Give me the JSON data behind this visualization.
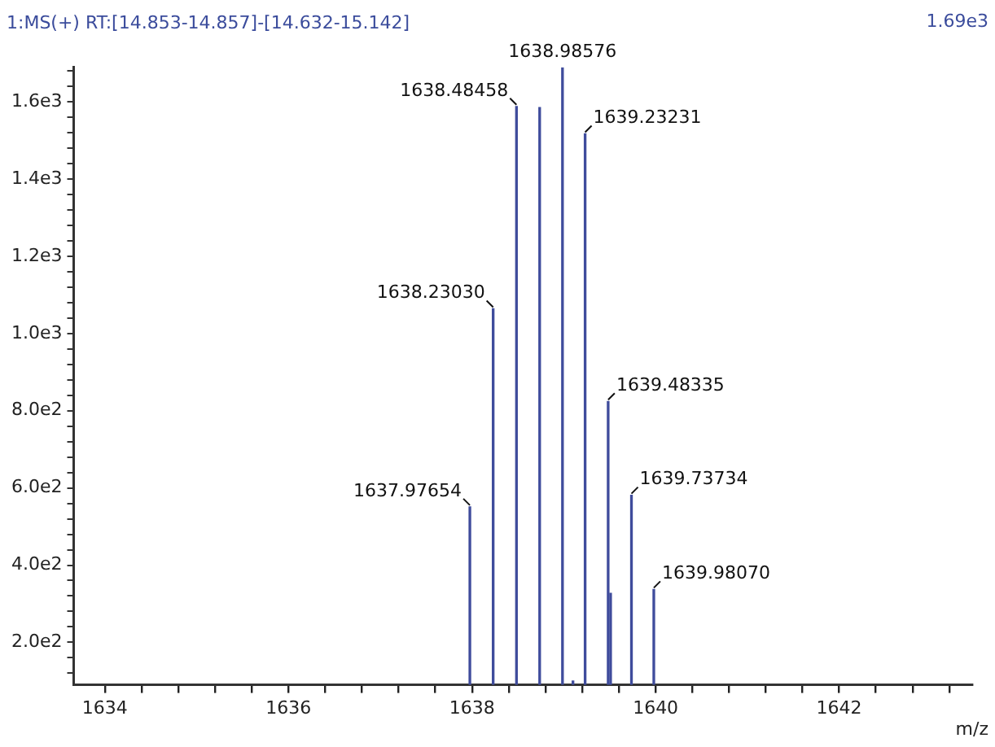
{
  "chart_data": {
    "type": "bar",
    "title": "1:MS(+) RT:[14.853-14.857]-[14.632-15.142]",
    "xlabel": "m/z",
    "x": [
      1637.97654,
      1638.2303,
      1638.48458,
      1638.737,
      1638.98576,
      1639.1,
      1639.23231,
      1639.48335,
      1639.51,
      1639.73734,
      1639.9807
    ],
    "series": [
      {
        "color": "#3f4c9c",
        "values": [
          551,
          1064,
          1588,
          1585,
          1688,
          100,
          1517,
          824,
          327,
          581,
          337
        ]
      }
    ],
    "xlim": [
      1633.66,
      1643.45
    ],
    "xticks": [
      1634,
      {
        "value": 1634.4,
        "label": null
      },
      {
        "value": 1634.8,
        "label": null
      },
      {
        "value": 1635.2,
        "label": null
      },
      {
        "value": 1635.6,
        "label": null
      },
      1636,
      {
        "value": 1636.4,
        "label": null
      },
      {
        "value": 1636.8,
        "label": null
      },
      {
        "value": 1637.2,
        "label": null
      },
      {
        "value": 1637.6,
        "label": null
      },
      1638,
      {
        "value": 1638.4,
        "label": null
      },
      {
        "value": 1638.8,
        "label": null
      },
      {
        "value": 1639.2,
        "label": null
      },
      {
        "value": 1639.6,
        "label": null
      },
      1640,
      {
        "value": 1640.4,
        "label": null
      },
      {
        "value": 1640.8,
        "label": null
      },
      {
        "value": 1641.2,
        "label": null
      },
      {
        "value": 1641.6,
        "label": null
      },
      1642,
      {
        "value": 1642.4,
        "label": null
      },
      {
        "value": 1642.8,
        "label": null
      },
      {
        "value": 1643.2,
        "label": null
      }
    ],
    "ylim": [
      90,
      1690
    ],
    "yticks": [
      {
        "value": 120,
        "label": null
      },
      {
        "value": 160,
        "label": null
      },
      {
        "value": 200,
        "label": "2.0e2"
      },
      {
        "value": 240,
        "label": null
      },
      {
        "value": 280,
        "label": null
      },
      {
        "value": 320,
        "label": null
      },
      {
        "value": 360,
        "label": null
      },
      {
        "value": 400,
        "label": "4.0e2"
      },
      {
        "value": 440,
        "label": null
      },
      {
        "value": 480,
        "label": null
      },
      {
        "value": 520,
        "label": null
      },
      {
        "value": 560,
        "label": null
      },
      {
        "value": 600,
        "label": "6.0e2"
      },
      {
        "value": 640,
        "label": null
      },
      {
        "value": 680,
        "label": null
      },
      {
        "value": 720,
        "label": null
      },
      {
        "value": 760,
        "label": null
      },
      {
        "value": 800,
        "label": "8.0e2"
      },
      {
        "value": 840,
        "label": null
      },
      {
        "value": 880,
        "label": null
      },
      {
        "value": 920,
        "label": null
      },
      {
        "value": 960,
        "label": null
      },
      {
        "value": 1000,
        "label": "1.0e3"
      },
      {
        "value": 1040,
        "label": null
      },
      {
        "value": 1080,
        "label": null
      },
      {
        "value": 1120,
        "label": null
      },
      {
        "value": 1160,
        "label": null
      },
      {
        "value": 1200,
        "label": "1.2e3"
      },
      {
        "value": 1240,
        "label": null
      },
      {
        "value": 1280,
        "label": null
      },
      {
        "value": 1320,
        "label": null
      },
      {
        "value": 1360,
        "label": null
      },
      {
        "value": 1400,
        "label": "1.4e3"
      },
      {
        "value": 1440,
        "label": null
      },
      {
        "value": 1480,
        "label": null
      },
      {
        "value": 1520,
        "label": null
      },
      {
        "value": 1560,
        "label": null
      },
      {
        "value": 1600,
        "label": "1.6e3"
      },
      {
        "value": 1640,
        "label": null
      },
      {
        "value": 1680,
        "label": null
      }
    ],
    "grid": false,
    "legend": false,
    "annotations": [
      "1.69e3",
      {
        "text": "1637.97654",
        "x": 1637.97654,
        "y": 551
      },
      {
        "text": "1638.23030",
        "x": 1638.2303,
        "y": 1064
      },
      {
        "text": "1638.48458",
        "x": 1638.48458,
        "y": 1588
      },
      {
        "text": "1638.98576",
        "x": 1638.98576,
        "y": 1688
      },
      {
        "text": "1639.23231",
        "x": 1639.23231,
        "y": 1517
      },
      {
        "text": "1639.48335",
        "x": 1639.48335,
        "y": 824
      },
      {
        "text": "1639.73734",
        "x": 1639.73734,
        "y": 581
      },
      {
        "text": "1639.98070",
        "x": 1639.9807,
        "y": 337
      }
    ]
  }
}
